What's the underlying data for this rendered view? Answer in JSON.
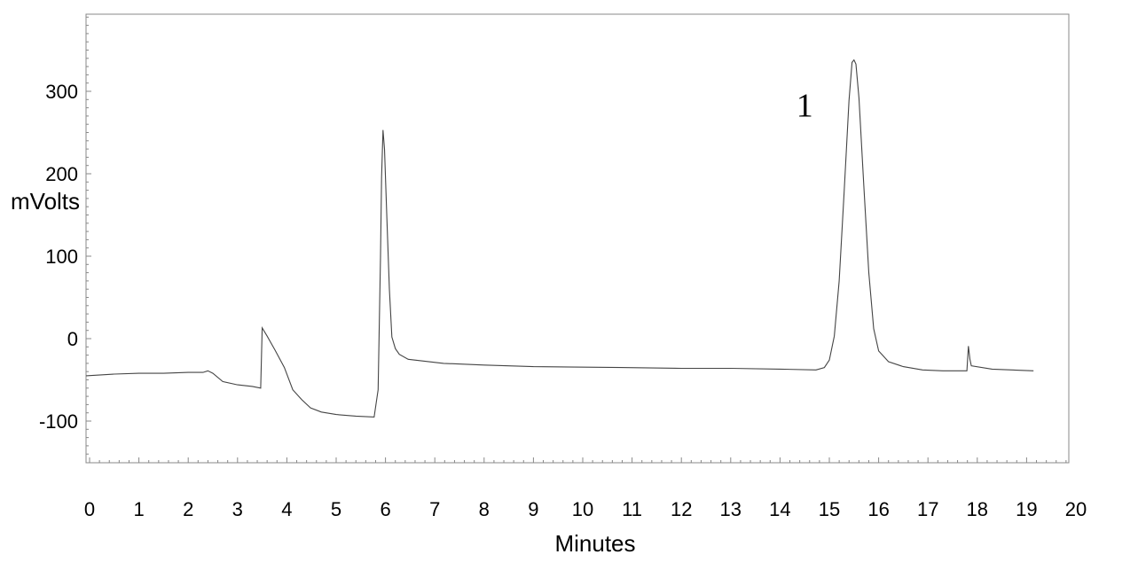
{
  "chart_data": {
    "type": "line",
    "title": "",
    "xlabel": "Minutes",
    "ylabel": "mVolts",
    "xlim": [
      -0.07,
      19.92
    ],
    "ylim": [
      -150,
      393
    ],
    "grid": false,
    "x_ticks": [
      0,
      1,
      2,
      3,
      4,
      5,
      6,
      7,
      8,
      9,
      10,
      11,
      12,
      13,
      14,
      15,
      16,
      17,
      18,
      19,
      20
    ],
    "x_tick_labels": [
      "0",
      "1",
      "2",
      "3",
      "4",
      "5",
      "6",
      "7",
      "8",
      "9",
      "10",
      "11",
      "12",
      "13",
      "14",
      "15",
      "16",
      "17",
      "18",
      "19",
      "20"
    ],
    "y_ticks": [
      300,
      200,
      100,
      0,
      -100
    ],
    "y_tick_labels": [
      "300",
      "200",
      "100",
      "0",
      "-100"
    ],
    "colors": {
      "trace": "#444444",
      "frame": "#888888",
      "text": "#000000"
    },
    "annotations": [
      {
        "text": "1",
        "x": 14.5,
        "y": 282
      }
    ],
    "series": [
      {
        "x": [
          -0.07,
          0.5,
          1.0,
          1.5,
          2.0,
          2.3,
          2.4,
          2.5,
          2.7,
          3.0,
          3.3,
          3.47,
          3.5,
          3.6,
          3.76,
          3.95,
          4.12,
          4.3,
          4.48,
          4.7,
          5.0,
          5.4,
          5.77,
          5.85,
          5.9,
          5.92,
          5.95,
          5.98,
          6.03,
          6.08,
          6.13,
          6.2,
          6.28,
          6.46,
          7.18,
          8.0,
          9.0,
          10.77,
          12.0,
          13.0,
          14.0,
          14.73,
          14.9,
          15.0,
          15.1,
          15.2,
          15.3,
          15.4,
          15.46,
          15.5,
          15.54,
          15.6,
          15.7,
          15.8,
          15.9,
          16.0,
          16.2,
          16.5,
          16.89,
          17.3,
          17.79,
          17.82,
          17.85,
          17.88,
          18.3,
          18.7,
          19.14
        ],
        "y": [
          -45,
          -43,
          -42,
          -42,
          -41,
          -41,
          -39,
          -42,
          -52,
          -56,
          -58,
          -60,
          13,
          3,
          -14,
          -35,
          -62,
          -74,
          -84,
          -89,
          -92,
          -94,
          -95,
          -62,
          100,
          196,
          253,
          230,
          142,
          60,
          2,
          -12,
          -19,
          -25,
          -30,
          -32,
          -34,
          -35,
          -36,
          -36,
          -37,
          -38,
          -35,
          -26,
          3,
          70,
          178,
          289,
          335,
          338,
          333,
          292,
          185,
          80,
          12,
          -15,
          -28,
          -34,
          -38,
          -39,
          -39,
          -9,
          -25,
          -33,
          -37,
          -38,
          -39
        ]
      }
    ]
  }
}
